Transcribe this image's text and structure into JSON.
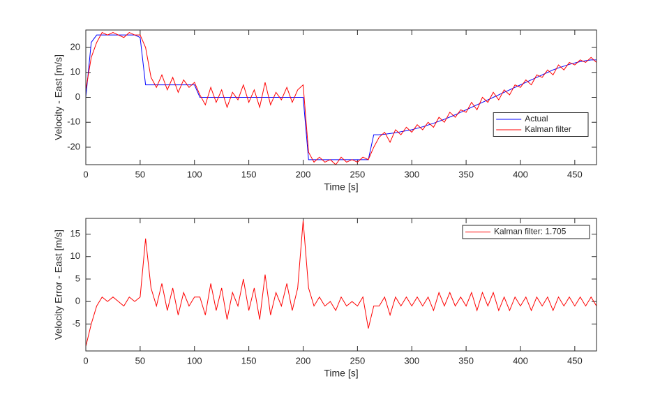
{
  "chart_data": [
    {
      "type": "line",
      "xlabel": "Time [s]",
      "ylabel": "Velocity - East [m/s]",
      "x": [
        0,
        5,
        10,
        15,
        20,
        25,
        30,
        35,
        40,
        45,
        50,
        55,
        60,
        65,
        70,
        75,
        80,
        85,
        90,
        95,
        100,
        105,
        110,
        115,
        120,
        125,
        130,
        135,
        140,
        145,
        150,
        155,
        160,
        165,
        170,
        175,
        180,
        185,
        190,
        195,
        200,
        205,
        210,
        215,
        220,
        225,
        230,
        235,
        240,
        245,
        250,
        255,
        260,
        265,
        270,
        275,
        280,
        285,
        290,
        295,
        300,
        305,
        310,
        315,
        320,
        325,
        330,
        335,
        340,
        345,
        350,
        355,
        360,
        365,
        370,
        375,
        380,
        385,
        390,
        395,
        400,
        405,
        410,
        415,
        420,
        425,
        430,
        435,
        440,
        445,
        450,
        455,
        460,
        465,
        470
      ],
      "series": [
        {
          "name": "Actual",
          "color": "#0000ff",
          "values": [
            0,
            22,
            25,
            25,
            25,
            25,
            25,
            25,
            25,
            25,
            24,
            5,
            5,
            5,
            5,
            5,
            5,
            5,
            5,
            5,
            5,
            0,
            0,
            0,
            0,
            0,
            0,
            0,
            0,
            0,
            0,
            0,
            0,
            0,
            0,
            0,
            0,
            0,
            0,
            0,
            0,
            -25,
            -25,
            -25,
            -25,
            -25,
            -25,
            -25,
            -25,
            -25,
            -25,
            -25,
            -25,
            -15,
            -15,
            -14.8,
            -14.5,
            -14.2,
            -13.8,
            -13.4,
            -13,
            -12.4,
            -11.8,
            -11.1,
            -10.4,
            -9.6,
            -8.8,
            -7.9,
            -7,
            -6,
            -5,
            -4,
            -3,
            -2,
            -1,
            0,
            1,
            2,
            3,
            4,
            5,
            6,
            7,
            8,
            9,
            10,
            11,
            11.8,
            12.5,
            13.2,
            13.8,
            14.3,
            14.7,
            15,
            15
          ]
        },
        {
          "name": "Kalman filter",
          "color": "#ff0000",
          "values": [
            3,
            16,
            22,
            26,
            25,
            26,
            25,
            24,
            26,
            25,
            25,
            20,
            8,
            4,
            9,
            3,
            8,
            2,
            7,
            4,
            6,
            1,
            -3,
            4,
            -2,
            3,
            -4,
            2,
            -1,
            5,
            -2,
            3,
            -4,
            6,
            -3,
            2,
            -1,
            4,
            -2,
            3,
            5,
            -22,
            -26,
            -24,
            -26,
            -25,
            -27,
            -24,
            -26,
            -25,
            -26,
            -24,
            -25,
            -20,
            -16,
            -14,
            -18,
            -13,
            -15,
            -12,
            -14,
            -11,
            -13,
            -10,
            -12,
            -8,
            -10,
            -6,
            -8,
            -5,
            -6,
            -2,
            -5,
            0,
            -2,
            2,
            -1,
            3,
            1,
            5,
            4,
            7,
            5,
            9,
            8,
            11,
            9,
            13,
            11,
            14,
            13,
            15,
            14,
            16,
            14
          ]
        }
      ],
      "xlim": [
        0,
        470
      ],
      "ylim": [
        -27,
        27
      ],
      "xticks": [
        0,
        50,
        100,
        150,
        200,
        250,
        300,
        350,
        400,
        450
      ],
      "yticks": [
        -20,
        -10,
        0,
        10,
        20
      ],
      "legend": "east"
    },
    {
      "type": "line",
      "xlabel": "Time [s]",
      "ylabel": "Velocity Error - East [m/s]",
      "x": [
        0,
        5,
        10,
        15,
        20,
        25,
        30,
        35,
        40,
        45,
        50,
        55,
        60,
        65,
        70,
        75,
        80,
        85,
        90,
        95,
        100,
        105,
        110,
        115,
        120,
        125,
        130,
        135,
        140,
        145,
        150,
        155,
        160,
        165,
        170,
        175,
        180,
        185,
        190,
        195,
        200,
        205,
        210,
        215,
        220,
        225,
        230,
        235,
        240,
        245,
        250,
        255,
        260,
        265,
        270,
        275,
        280,
        285,
        290,
        295,
        300,
        305,
        310,
        315,
        320,
        325,
        330,
        335,
        340,
        345,
        350,
        355,
        360,
        365,
        370,
        375,
        380,
        385,
        390,
        395,
        400,
        405,
        410,
        415,
        420,
        425,
        430,
        435,
        440,
        445,
        450,
        455,
        460,
        465,
        470
      ],
      "series": [
        {
          "name": "Kalman filter: 1.705",
          "color": "#ff0000",
          "values": [
            -10,
            -5,
            -1,
            1,
            0,
            1,
            0,
            -1,
            1,
            0,
            1,
            14,
            3,
            -1,
            4,
            -2,
            3,
            -3,
            2,
            -1,
            1,
            1,
            -3,
            4,
            -2,
            3,
            -4,
            2,
            -1,
            5,
            -2,
            3,
            -4,
            6,
            -3,
            2,
            -1,
            4,
            -2,
            3,
            18,
            3,
            -1,
            1,
            -1,
            0,
            -2,
            1,
            -1,
            0,
            -1,
            1,
            -6,
            -1,
            -1,
            1,
            -3,
            1,
            -1,
            1,
            -1,
            1,
            -1,
            1,
            -2,
            2,
            -1,
            2,
            -1,
            1,
            -1,
            2,
            -2,
            2,
            -1,
            2,
            -2,
            1,
            -2,
            1,
            -1,
            1,
            -2,
            1,
            -1,
            1,
            -2,
            1,
            -1,
            1,
            -1,
            1,
            -1,
            1,
            -1
          ]
        }
      ],
      "xlim": [
        0,
        470
      ],
      "ylim": [
        -11,
        18.5
      ],
      "xticks": [
        0,
        50,
        100,
        150,
        200,
        250,
        300,
        350,
        400,
        450
      ],
      "yticks": [
        -5,
        0,
        5,
        10,
        15
      ],
      "legend": "northeast"
    }
  ]
}
